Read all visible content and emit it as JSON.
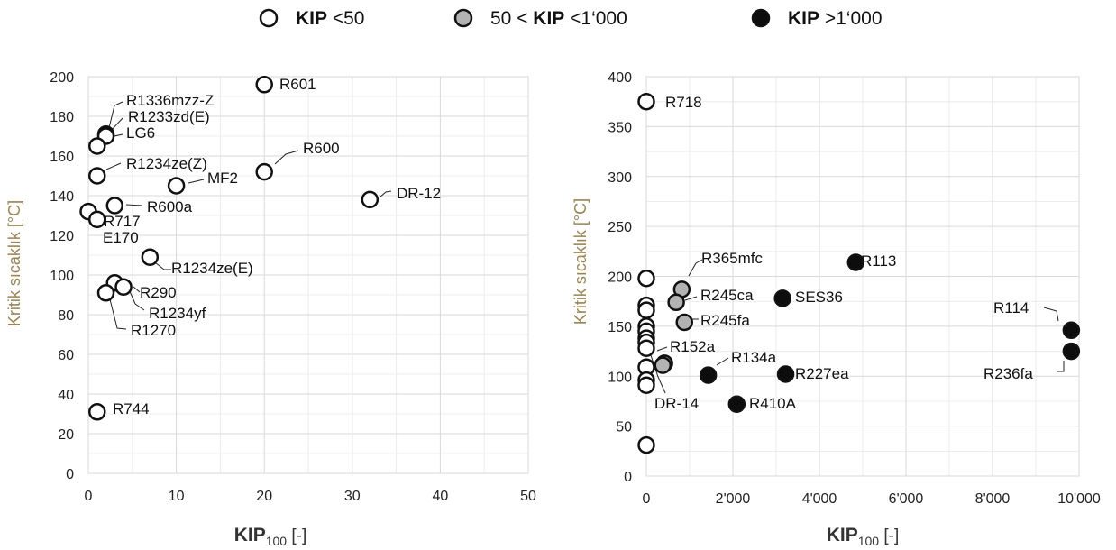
{
  "legend": {
    "items": [
      {
        "prefix": "",
        "bold": "KIP",
        "suffix": " <50",
        "fill": "#ffffff"
      },
      {
        "prefix": "50 < ",
        "bold": "KIP",
        "suffix": " <1‘000",
        "fill": "#b3b3b3"
      },
      {
        "prefix": "",
        "bold": "KIP",
        "suffix": " >1‘000",
        "fill": "#0d0d0d"
      }
    ]
  },
  "colors": {
    "low": "#ffffff",
    "mid": "#b3b3b3",
    "high": "#0d0d0d",
    "stroke": "#111111",
    "grid": "#d9d9d9",
    "axis_label": "#9a8455"
  },
  "chart_data": [
    {
      "type": "scatter",
      "xlabel_main": "KIP",
      "xlabel_sub": "100",
      "xlabel_unit": " [-]",
      "ylabel": "Kritik sıcaklık    [°C]",
      "xlim": [
        0,
        50
      ],
      "ylim": [
        0,
        200
      ],
      "xticks": [
        0,
        10,
        20,
        30,
        40,
        50
      ],
      "xtick_labels": [
        "0",
        "10",
        "20",
        "30",
        "40",
        "50"
      ],
      "yticks": [
        0,
        20,
        40,
        60,
        80,
        100,
        120,
        140,
        160,
        180,
        200
      ],
      "ytick_labels": [
        "0",
        "20",
        "40",
        "60",
        "80",
        "100",
        "120",
        "140",
        "160",
        "180",
        "200"
      ],
      "grid": true,
      "points": [
        {
          "x": 20,
          "y": 196,
          "cls": "low",
          "label": "R601"
        },
        {
          "x": 2,
          "y": 171,
          "cls": "low",
          "label": "R1336mzz-Z"
        },
        {
          "x": 2,
          "y": 170,
          "cls": "low",
          "label": "R1233zd(E)"
        },
        {
          "x": 1,
          "y": 165,
          "cls": "low",
          "label": "LG6"
        },
        {
          "x": 1,
          "y": 150,
          "cls": "low",
          "label": "R1234ze(Z)"
        },
        {
          "x": 20,
          "y": 152,
          "cls": "low",
          "label": "R600"
        },
        {
          "x": 10,
          "y": 145,
          "cls": "low",
          "label": "MF2"
        },
        {
          "x": 32,
          "y": 138,
          "cls": "low",
          "label": "DR-12"
        },
        {
          "x": 3,
          "y": 135,
          "cls": "low",
          "label": "R600a"
        },
        {
          "x": 0,
          "y": 132,
          "cls": "low",
          "label": "R717"
        },
        {
          "x": 1,
          "y": 128,
          "cls": "low",
          "label": "E170"
        },
        {
          "x": 7,
          "y": 109,
          "cls": "low",
          "label": "R1234ze(E)"
        },
        {
          "x": 3,
          "y": 96,
          "cls": "low",
          "label": "R1234yf"
        },
        {
          "x": 4,
          "y": 94,
          "cls": "low",
          "label": "R290"
        },
        {
          "x": 2,
          "y": 91,
          "cls": "low",
          "label": "R1270"
        },
        {
          "x": 1,
          "y": 31,
          "cls": "low",
          "label": "R744"
        }
      ]
    },
    {
      "type": "scatter",
      "xlabel_main": "KIP",
      "xlabel_sub": "100",
      "xlabel_unit": " [-]",
      "ylabel": "Kritik sıcaklık  [°C]",
      "xlim": [
        0,
        10000
      ],
      "ylim": [
        0,
        400
      ],
      "xticks": [
        0,
        2000,
        4000,
        6000,
        8000,
        10000
      ],
      "xtick_labels": [
        "0",
        "2'000",
        "4'000",
        "6'000",
        "8'000",
        "10'000"
      ],
      "yticks": [
        0,
        50,
        100,
        150,
        200,
        250,
        300,
        350,
        400
      ],
      "ytick_labels": [
        "0",
        "50",
        "100",
        "150",
        "200",
        "250",
        "300",
        "350",
        "400"
      ],
      "grid": true,
      "points": [
        {
          "x": 0,
          "y": 375,
          "cls": "low",
          "label": "R718"
        },
        {
          "x": 0,
          "y": 198,
          "cls": "low",
          "label": ""
        },
        {
          "x": 0,
          "y": 171,
          "cls": "low",
          "label": ""
        },
        {
          "x": 0,
          "y": 166,
          "cls": "low",
          "label": ""
        },
        {
          "x": 0,
          "y": 150,
          "cls": "low",
          "label": ""
        },
        {
          "x": 0,
          "y": 145,
          "cls": "low",
          "label": ""
        },
        {
          "x": 0,
          "y": 138,
          "cls": "low",
          "label": ""
        },
        {
          "x": 0,
          "y": 134,
          "cls": "low",
          "label": ""
        },
        {
          "x": 0,
          "y": 128,
          "cls": "low",
          "label": ""
        },
        {
          "x": 0,
          "y": 109,
          "cls": "low",
          "label": ""
        },
        {
          "x": 0,
          "y": 96,
          "cls": "low",
          "label": ""
        },
        {
          "x": 0,
          "y": 91,
          "cls": "low",
          "label": ""
        },
        {
          "x": 0,
          "y": 31,
          "cls": "low",
          "label": ""
        },
        {
          "x": 820,
          "y": 187,
          "cls": "mid",
          "label": "R365mfc"
        },
        {
          "x": 690,
          "y": 174,
          "cls": "mid",
          "label": "R245ca"
        },
        {
          "x": 880,
          "y": 154,
          "cls": "mid",
          "label": "R245fa"
        },
        {
          "x": 420,
          "y": 113,
          "cls": "mid",
          "label": "R152a"
        },
        {
          "x": 380,
          "y": 111,
          "cls": "mid",
          "label": "DR-14"
        },
        {
          "x": 1430,
          "y": 101,
          "cls": "high",
          "label": "R134a"
        },
        {
          "x": 3220,
          "y": 102,
          "cls": "high",
          "label": "R227ea"
        },
        {
          "x": 2090,
          "y": 72,
          "cls": "high",
          "label": "R410A"
        },
        {
          "x": 3150,
          "y": 178,
          "cls": "high",
          "label": "SES36"
        },
        {
          "x": 4840,
          "y": 214,
          "cls": "high",
          "label": "R113"
        },
        {
          "x": 9820,
          "y": 146,
          "cls": "high",
          "label": "R114"
        },
        {
          "x": 9820,
          "y": 125,
          "cls": "high",
          "label": "R236fa"
        }
      ]
    }
  ]
}
